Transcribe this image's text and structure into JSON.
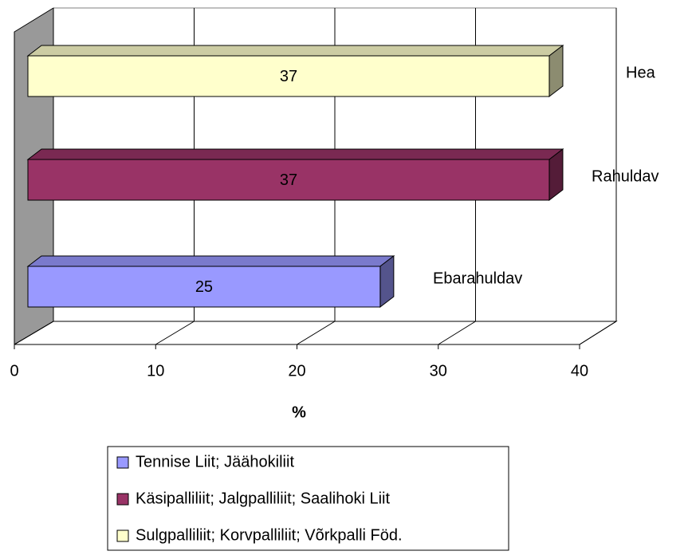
{
  "chart_data": {
    "type": "bar",
    "orientation": "horizontal",
    "three_d": true,
    "categories": [
      "Ebarahuldav",
      "Rahuldav",
      "Hea"
    ],
    "series": [
      {
        "name": "Tennise Liit; Jäähokiliit",
        "color": "#9999ff",
        "values": [
          25,
          null,
          null
        ]
      },
      {
        "name": "Käsipalliliit; Jalgpalliliit; Saalihoki Liit",
        "color": "#993366",
        "values": [
          null,
          37,
          null
        ]
      },
      {
        "name": "Sulgpalliliit; Korvpalliliit; Võrkpalli Föd.",
        "color": "#ffffcc",
        "values": [
          null,
          null,
          37
        ]
      }
    ],
    "xlabel": "%",
    "xlim": [
      0,
      40
    ],
    "xticks": [
      0,
      10,
      20,
      30,
      40
    ],
    "grid": true,
    "legend": "bottom"
  }
}
